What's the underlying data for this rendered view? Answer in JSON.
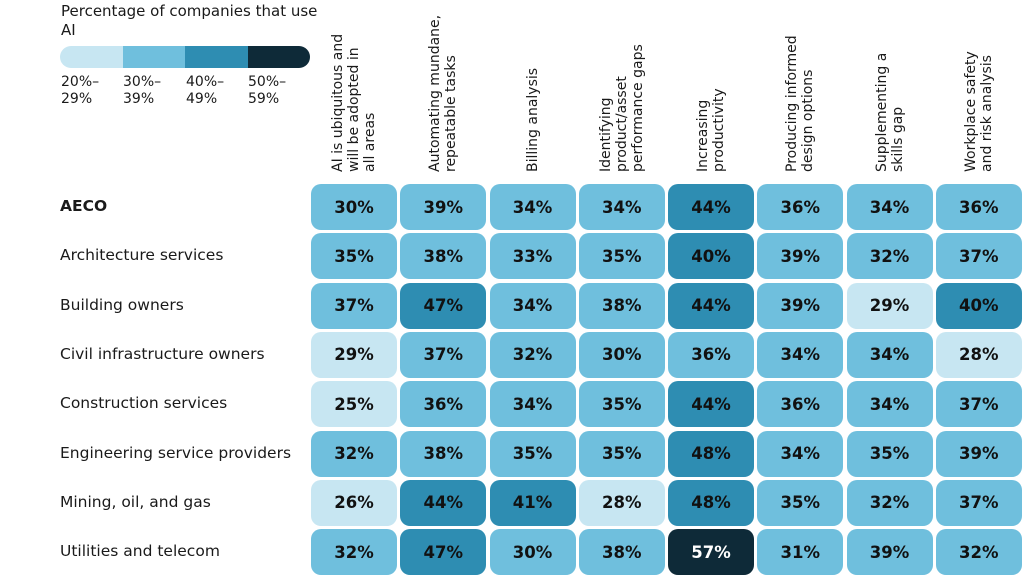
{
  "chart_data": {
    "type": "heatmap",
    "legend": {
      "title": "Percentage of companies that use AI",
      "bins": [
        {
          "label": "20%–29%",
          "line1": "20%–",
          "line2": "29%",
          "min": 20,
          "max": 29,
          "color": "#c7e6f2"
        },
        {
          "label": "30%–39%",
          "line1": "30%–",
          "line2": "39%",
          "min": 30,
          "max": 39,
          "color": "#6fbfdd"
        },
        {
          "label": "40%–49%",
          "line1": "40%–",
          "line2": "49%",
          "min": 40,
          "max": 49,
          "color": "#2e8db2"
        },
        {
          "label": "50%–59%",
          "line1": "50%–",
          "line2": "59%",
          "min": 50,
          "max": 59,
          "color": "#0e2a38"
        }
      ]
    },
    "columns": [
      {
        "lines": [
          "AI is ubiquitous and",
          "will be adopted in",
          "all areas"
        ]
      },
      {
        "lines": [
          "Automating mundane,",
          "repeatable tasks"
        ]
      },
      {
        "lines": [
          "Billing analysis"
        ]
      },
      {
        "lines": [
          "Identifying",
          "product/asset",
          "performance gaps"
        ]
      },
      {
        "lines": [
          "Increasing",
          "productivity"
        ]
      },
      {
        "lines": [
          "Producing informed",
          "design options"
        ]
      },
      {
        "lines": [
          "Supplementing a",
          "skills gap"
        ]
      },
      {
        "lines": [
          "Workplace safety",
          "and risk analysis"
        ]
      }
    ],
    "rows": [
      {
        "label": "AECO",
        "bold": true,
        "values": [
          30,
          39,
          34,
          34,
          44,
          36,
          34,
          36
        ]
      },
      {
        "label": "Architecture services",
        "values": [
          35,
          38,
          33,
          35,
          40,
          39,
          32,
          37
        ]
      },
      {
        "label": "Building owners",
        "values": [
          37,
          47,
          34,
          38,
          44,
          39,
          29,
          40
        ]
      },
      {
        "label": "Civil infrastructure owners",
        "values": [
          29,
          37,
          32,
          30,
          36,
          34,
          34,
          28
        ]
      },
      {
        "label": "Construction services",
        "values": [
          25,
          36,
          34,
          35,
          44,
          36,
          34,
          37
        ]
      },
      {
        "label": "Engineering service providers",
        "values": [
          32,
          38,
          35,
          35,
          48,
          34,
          35,
          39
        ]
      },
      {
        "label": "Mining, oil, and gas",
        "values": [
          26,
          44,
          41,
          28,
          48,
          35,
          32,
          37
        ]
      },
      {
        "label": "Utilities and telecom",
        "values": [
          32,
          47,
          30,
          38,
          57,
          31,
          39,
          32
        ]
      }
    ],
    "value_suffix": "%"
  }
}
